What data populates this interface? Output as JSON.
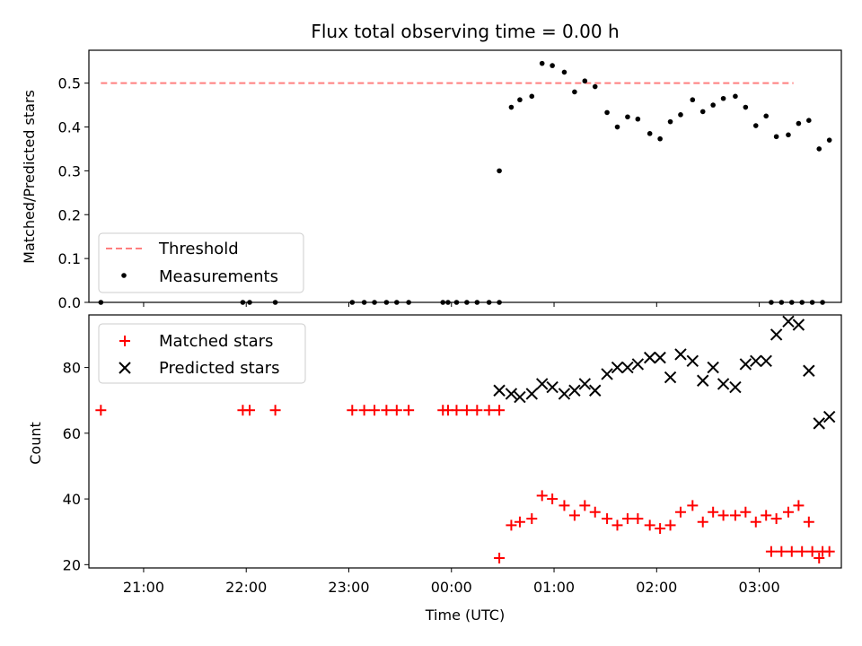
{
  "chart_data": [
    {
      "type": "scatter",
      "title": "Flux total observing time = 0.00 h",
      "ylabel": "Matched/Predicted stars",
      "xlabel": "",
      "ylim": [
        0,
        0.575
      ],
      "yticks": [
        "0.0",
        "0.1",
        "0.2",
        "0.3",
        "0.4",
        "0.5"
      ],
      "grid": false,
      "legend": "lower-left",
      "threshold": {
        "name": "Threshold",
        "value": 0.5,
        "x_start": "20:35",
        "x_end": "03:20",
        "color": "#ff7f7f"
      },
      "series": [
        {
          "name": "Measurements",
          "color": "#000000",
          "marker": "dot",
          "points": [
            [
              "20:35",
              0.0
            ],
            [
              "21:58",
              0.0
            ],
            [
              "22:02",
              0.0
            ],
            [
              "22:17",
              0.0
            ],
            [
              "23:02",
              0.0
            ],
            [
              "23:09",
              0.0
            ],
            [
              "23:15",
              0.0
            ],
            [
              "23:22",
              0.0
            ],
            [
              "23:28",
              0.0
            ],
            [
              "23:35",
              0.0
            ],
            [
              "23:55",
              0.0
            ],
            [
              "23:58",
              0.0
            ],
            [
              "00:03",
              0.0
            ],
            [
              "00:09",
              0.0
            ],
            [
              "00:15",
              0.0
            ],
            [
              "00:22",
              0.0
            ],
            [
              "00:28",
              0.0
            ],
            [
              "00:28",
              0.3
            ],
            [
              "00:35",
              0.445
            ],
            [
              "00:40",
              0.462
            ],
            [
              "00:47",
              0.47
            ],
            [
              "00:53",
              0.545
            ],
            [
              "00:59",
              0.54
            ],
            [
              "01:06",
              0.525
            ],
            [
              "01:12",
              0.48
            ],
            [
              "01:18",
              0.505
            ],
            [
              "01:24",
              0.492
            ],
            [
              "01:31",
              0.433
            ],
            [
              "01:37",
              0.4
            ],
            [
              "01:43",
              0.423
            ],
            [
              "01:49",
              0.418
            ],
            [
              "01:56",
              0.385
            ],
            [
              "02:02",
              0.373
            ],
            [
              "02:08",
              0.412
            ],
            [
              "02:14",
              0.428
            ],
            [
              "02:21",
              0.462
            ],
            [
              "02:27",
              0.435
            ],
            [
              "02:33",
              0.45
            ],
            [
              "02:39",
              0.465
            ],
            [
              "02:46",
              0.47
            ],
            [
              "02:52",
              0.445
            ],
            [
              "02:58",
              0.403
            ],
            [
              "03:04",
              0.425
            ],
            [
              "03:10",
              0.378
            ],
            [
              "03:17",
              0.382
            ],
            [
              "03:23",
              0.408
            ],
            [
              "03:29",
              0.415
            ],
            [
              "03:35",
              0.35
            ],
            [
              "03:41",
              0.37
            ],
            [
              "03:07",
              0.0
            ],
            [
              "03:13",
              0.0
            ],
            [
              "03:19",
              0.0
            ],
            [
              "03:25",
              0.0
            ],
            [
              "03:31",
              0.0
            ],
            [
              "03:37",
              0.0
            ]
          ]
        }
      ]
    },
    {
      "type": "scatter",
      "title": "",
      "ylabel": "Count",
      "xlabel": "Time (UTC)",
      "ylim": [
        19,
        96
      ],
      "yticks": [
        "20",
        "40",
        "60",
        "80"
      ],
      "xticks": [
        "21:00",
        "22:00",
        "23:00",
        "00:00",
        "01:00",
        "02:00",
        "03:00"
      ],
      "grid": false,
      "legend": "top-left",
      "series": [
        {
          "name": "Matched stars",
          "color": "#ff0000",
          "marker": "plus",
          "points": [
            [
              "20:35",
              67
            ],
            [
              "21:58",
              67
            ],
            [
              "22:02",
              67
            ],
            [
              "22:17",
              67
            ],
            [
              "23:02",
              67
            ],
            [
              "23:09",
              67
            ],
            [
              "23:15",
              67
            ],
            [
              "23:22",
              67
            ],
            [
              "23:28",
              67
            ],
            [
              "23:35",
              67
            ],
            [
              "23:55",
              67
            ],
            [
              "23:58",
              67
            ],
            [
              "00:03",
              67
            ],
            [
              "00:09",
              67
            ],
            [
              "00:15",
              67
            ],
            [
              "00:22",
              67
            ],
            [
              "00:28",
              67
            ],
            [
              "00:28",
              22
            ],
            [
              "00:35",
              32
            ],
            [
              "00:40",
              33
            ],
            [
              "00:47",
              34
            ],
            [
              "00:53",
              41
            ],
            [
              "00:59",
              40
            ],
            [
              "01:06",
              38
            ],
            [
              "01:12",
              35
            ],
            [
              "01:18",
              38
            ],
            [
              "01:24",
              36
            ],
            [
              "01:31",
              34
            ],
            [
              "01:37",
              32
            ],
            [
              "01:43",
              34
            ],
            [
              "01:49",
              34
            ],
            [
              "01:56",
              32
            ],
            [
              "02:02",
              31
            ],
            [
              "02:08",
              32
            ],
            [
              "02:14",
              36
            ],
            [
              "02:21",
              38
            ],
            [
              "02:27",
              33
            ],
            [
              "02:33",
              36
            ],
            [
              "02:39",
              35
            ],
            [
              "02:46",
              35
            ],
            [
              "02:52",
              36
            ],
            [
              "02:58",
              33
            ],
            [
              "03:04",
              35
            ],
            [
              "03:10",
              34
            ],
            [
              "03:17",
              36
            ],
            [
              "03:23",
              38
            ],
            [
              "03:29",
              33
            ],
            [
              "03:35",
              22
            ],
            [
              "03:41",
              24
            ],
            [
              "03:07",
              24
            ],
            [
              "03:13",
              24
            ],
            [
              "03:19",
              24
            ],
            [
              "03:25",
              24
            ],
            [
              "03:31",
              24
            ],
            [
              "03:37",
              24
            ]
          ]
        },
        {
          "name": "Predicted stars",
          "color": "#000000",
          "marker": "x",
          "points": [
            [
              "00:28",
              73
            ],
            [
              "00:35",
              72
            ],
            [
              "00:40",
              71
            ],
            [
              "00:47",
              72
            ],
            [
              "00:53",
              75
            ],
            [
              "00:59",
              74
            ],
            [
              "01:06",
              72
            ],
            [
              "01:12",
              73
            ],
            [
              "01:18",
              75
            ],
            [
              "01:24",
              73
            ],
            [
              "01:31",
              78
            ],
            [
              "01:37",
              80
            ],
            [
              "01:43",
              80
            ],
            [
              "01:49",
              81
            ],
            [
              "01:56",
              83
            ],
            [
              "02:02",
              83
            ],
            [
              "02:08",
              77
            ],
            [
              "02:14",
              84
            ],
            [
              "02:21",
              82
            ],
            [
              "02:27",
              76
            ],
            [
              "02:33",
              80
            ],
            [
              "02:39",
              75
            ],
            [
              "02:46",
              74
            ],
            [
              "02:52",
              81
            ],
            [
              "02:58",
              82
            ],
            [
              "03:04",
              82
            ],
            [
              "03:10",
              90
            ],
            [
              "03:17",
              94
            ],
            [
              "03:23",
              93
            ],
            [
              "03:29",
              79
            ],
            [
              "03:35",
              63
            ],
            [
              "03:41",
              65
            ]
          ]
        }
      ]
    }
  ]
}
